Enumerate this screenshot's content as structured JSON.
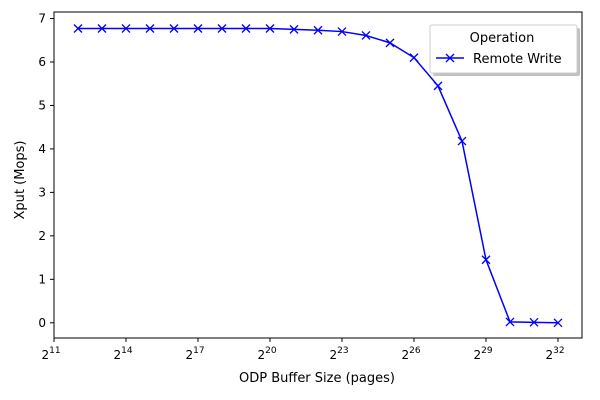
{
  "chart_data": {
    "type": "line",
    "xlabel": "ODP Buffer Size (pages)",
    "ylabel": "Xput (Mops)",
    "xscale": "log2",
    "x_tick_base": "2",
    "x_tick_exponents": [
      "11",
      "14",
      "17",
      "20",
      "23",
      "26",
      "29",
      "32"
    ],
    "y_ticks": [
      "0",
      "1",
      "2",
      "3",
      "4",
      "5",
      "6",
      "7"
    ],
    "xlim_exponent": [
      11,
      33
    ],
    "ylim": [
      -0.35,
      7.15
    ],
    "grid": false,
    "legend": {
      "title": "Operation",
      "placement": "top-right"
    },
    "series": [
      {
        "name": "Remote Write",
        "color": "#0000ff",
        "marker": "x",
        "x_exponent": [
          12,
          13,
          14,
          15,
          16,
          17,
          18,
          19,
          20,
          21,
          22,
          23,
          24,
          25,
          26,
          27,
          28,
          29,
          30,
          31,
          32
        ],
        "values": [
          6.77,
          6.77,
          6.77,
          6.77,
          6.77,
          6.77,
          6.77,
          6.77,
          6.77,
          6.75,
          6.73,
          6.7,
          6.61,
          6.44,
          6.1,
          5.45,
          4.18,
          1.45,
          0.02,
          0.01,
          0.0
        ]
      }
    ]
  }
}
